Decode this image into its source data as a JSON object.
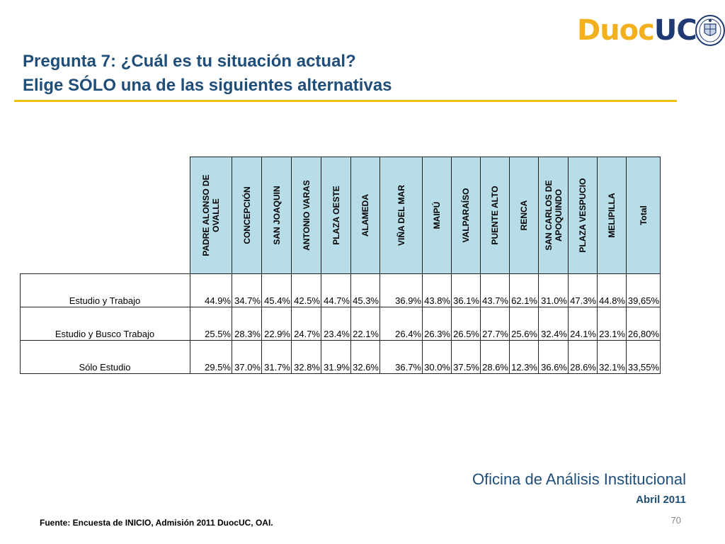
{
  "logo": {
    "part1": "Duoc",
    "part2": "UC"
  },
  "title": {
    "line1": "Pregunta 7: ¿Cuál es tu situación actual?",
    "line2": "Elige SÓLO una de las siguientes alternativas"
  },
  "table": {
    "columns": [
      "PADRE ALONSO DE OVALLE",
      "CONCEPCIÓN",
      "SAN JOAQUIN",
      "ANTONIO VARAS",
      "PLAZA OESTE",
      "ALAMEDA",
      "VIÑA DEL MAR",
      "MAIPÚ",
      "VALPARAÍSO",
      "PUENTE ALTO",
      "RENCA",
      "SAN CARLOS DE APOQUINDO",
      "PLAZA VESPUCIO",
      "MELIPILLA",
      "Total"
    ],
    "rows": [
      {
        "label": "Estudio y Trabajo",
        "values": [
          "44.9%",
          "34.7%",
          "45.4%",
          "42.5%",
          "44.7%",
          "45.3%",
          "36.9%",
          "43.8%",
          "36.1%",
          "43.7%",
          "62.1%",
          "31.0%",
          "47.3%",
          "44.8%",
          "39,65%"
        ]
      },
      {
        "label": "Estudio y Busco Trabajo",
        "values": [
          "25.5%",
          "28.3%",
          "22.9%",
          "24.7%",
          "23.4%",
          "22.1%",
          "26.4%",
          "26.3%",
          "26.5%",
          "27.7%",
          "25.6%",
          "32.4%",
          "24.1%",
          "23.1%",
          "26,80%"
        ]
      },
      {
        "label": "Sólo Estudio",
        "values": [
          "29.5%",
          "37.0%",
          "31.7%",
          "32.8%",
          "31.9%",
          "32.6%",
          "36.7%",
          "30.0%",
          "37.5%",
          "28.6%",
          "12.3%",
          "36.6%",
          "28.6%",
          "32.1%",
          "33,55%"
        ]
      }
    ]
  },
  "footer": {
    "office": "Oficina de Análisis Institucional",
    "date": "Abril 2011",
    "source": "Fuente: Encuesta de INICIO, Admisión 2011 DuocUC, OAI.",
    "page_number": "70"
  }
}
